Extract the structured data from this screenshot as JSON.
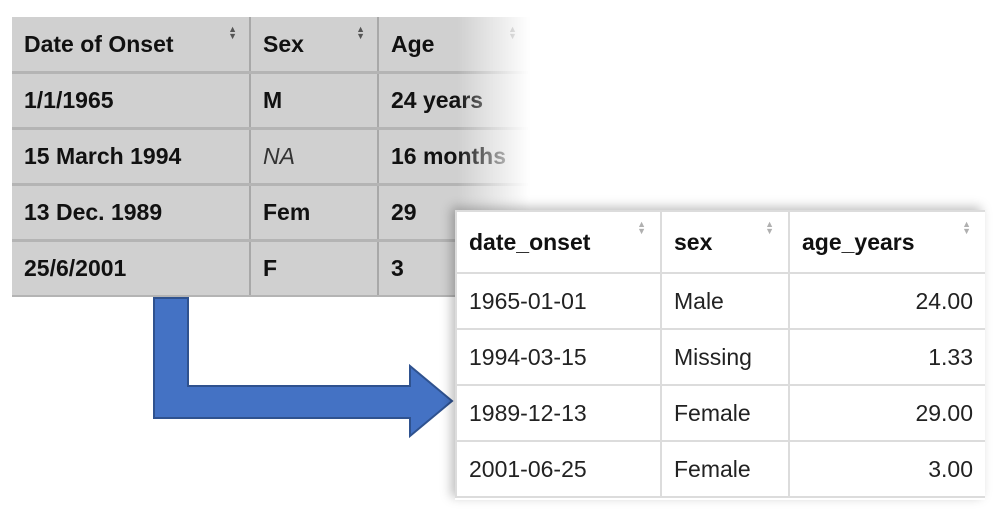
{
  "raw_table": {
    "headers": [
      "Date of Onset",
      "Sex",
      "Age"
    ],
    "rows": [
      [
        "1/1/1965",
        "M",
        "24 years"
      ],
      [
        "15 March 1994",
        "NA",
        "16 months"
      ],
      [
        "13 Dec. 1989",
        "Fem",
        "29"
      ],
      [
        "25/6/2001",
        "F",
        "3"
      ]
    ]
  },
  "clean_table": {
    "headers": [
      "date_onset",
      "sex",
      "age_years"
    ],
    "rows": [
      [
        "1965-01-01",
        "Male",
        "24.00"
      ],
      [
        "1994-03-15",
        "Missing",
        "1.33"
      ],
      [
        "1989-12-13",
        "Female",
        "29.00"
      ],
      [
        "2001-06-25",
        "Female",
        "3.00"
      ]
    ]
  },
  "sort_glyph": "sort-updown-icon",
  "colors": {
    "arrow_fill": "#4472c4",
    "arrow_stroke": "#2f528f",
    "raw_bg": "#d0d0d0"
  }
}
